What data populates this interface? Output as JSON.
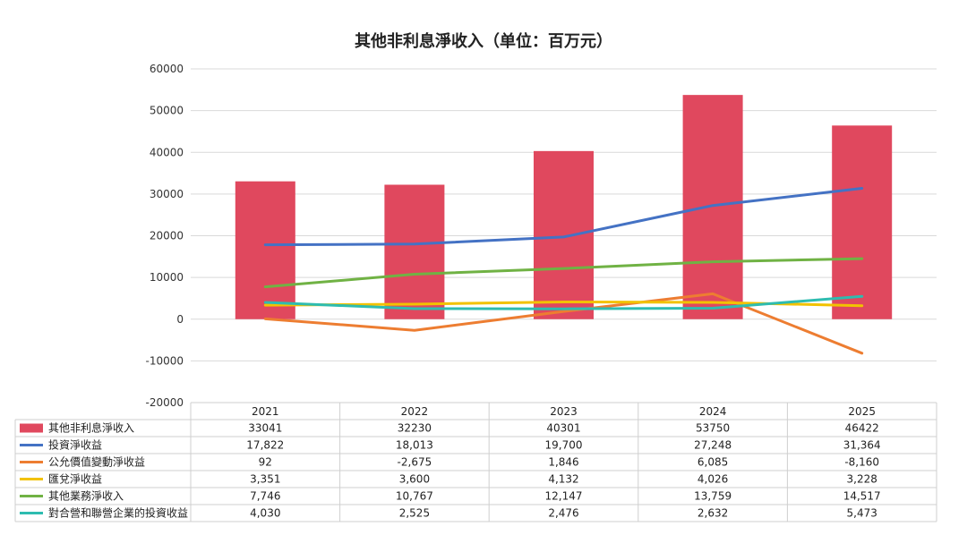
{
  "chart_data": {
    "type": "bar",
    "title": "其他非利息淨收入（单位：百万元）",
    "categories": [
      "2021",
      "2022",
      "2023",
      "2024",
      "2025"
    ],
    "ylim": [
      -20000,
      60000
    ],
    "yticks": [
      "60000",
      "50000",
      "40000",
      "30000",
      "20000",
      "10000",
      "0",
      "-10000",
      "-20000"
    ],
    "grid": true,
    "legend": "data-table-bottom",
    "series": [
      {
        "name": "其他非利息淨收入",
        "kind": "bar",
        "color": "#e0485e",
        "values": [
          33041,
          32230,
          40301,
          53750,
          46422
        ],
        "labels": [
          "33041",
          "32230",
          "40301",
          "53750",
          "46422"
        ]
      },
      {
        "name": "投資淨收益",
        "kind": "line",
        "color": "#4472c4",
        "values": [
          17822,
          18013,
          19700,
          27248,
          31364
        ],
        "labels": [
          "17,822",
          "18,013",
          "19,700",
          "27,248",
          "31,364"
        ]
      },
      {
        "name": "公允價值變動淨收益",
        "kind": "line",
        "color": "#ed7d31",
        "values": [
          92,
          -2675,
          1846,
          6085,
          -8160
        ],
        "labels": [
          "92",
          "-2,675",
          "1,846",
          "6,085",
          "-8,160"
        ]
      },
      {
        "name": "匯兌淨收益",
        "kind": "line",
        "color": "#f2c200",
        "values": [
          3351,
          3600,
          4132,
          4026,
          3228
        ],
        "labels": [
          "3,351",
          "3,600",
          "4,132",
          "4,026",
          "3,228"
        ]
      },
      {
        "name": "其他業務淨收入",
        "kind": "line",
        "color": "#70b244",
        "values": [
          7746,
          10767,
          12147,
          13759,
          14517
        ],
        "labels": [
          "7,746",
          "10,767",
          "12,147",
          "13,759",
          "14,517"
        ]
      },
      {
        "name": "對合營和聯營企業的投資收益",
        "kind": "line",
        "color": "#2ebcb0",
        "values": [
          4030,
          2525,
          2476,
          2632,
          5473
        ],
        "labels": [
          "4,030",
          "2,525",
          "2,476",
          "2,632",
          "5,473"
        ]
      }
    ]
  }
}
